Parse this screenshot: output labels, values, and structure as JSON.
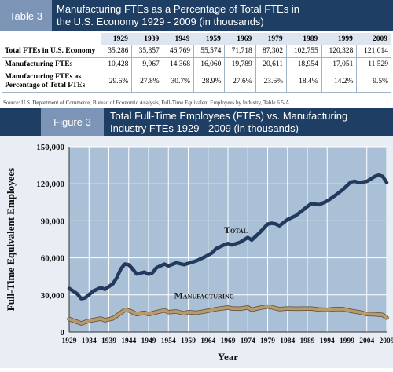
{
  "table": {
    "tag": "Table 3",
    "title_line1": "Manufacturing FTEs as a Percentage of Total FTEs in",
    "title_line2": "the U.S. Economy 1929 - 2009 (in thousands)",
    "years": [
      "1929",
      "1939",
      "1949",
      "1959",
      "1969",
      "1979",
      "1989",
      "1999",
      "2009"
    ],
    "rows": [
      {
        "label": "Total FTEs in U.S. Economy",
        "values": [
          "35,286",
          "35,857",
          "46,769",
          "55,574",
          "71,718",
          "87,302",
          "102,755",
          "120,328",
          "121,014"
        ]
      },
      {
        "label": "Manufacturing FTEs",
        "values": [
          "10,428",
          "9,967",
          "14,368",
          "16,060",
          "19,789",
          "20,611",
          "18,954",
          "17,051",
          "11,529"
        ]
      },
      {
        "label_line1": "Manufacturing FTEs as",
        "label_line2": "Percentage of Total FTEs",
        "values": [
          "29.6%",
          "27.8%",
          "30.7%",
          "28.9%",
          "27.6%",
          "23.6%",
          "18.4%",
          "14.2%",
          "9.5%"
        ]
      }
    ],
    "source": "Source: U.S. Department of Commerce, Bureau of Economic Analysis, Full-Time Equivalent Employees by Industry, Table 6.5-A"
  },
  "figure": {
    "tag": "Figure 3",
    "title_line1": "Total Full-Time Employees (FTEs) vs. Manufacturing",
    "title_line2": "Industry FTEs 1929 - 2009 (in thousands)"
  },
  "colors": {
    "header_bg": "#1f3e63",
    "tag_bg": "#7c95b6",
    "plot_bg": "#a9c0d6",
    "total_line": "#233a5e",
    "manufacturing_line": "#b89a6c"
  },
  "chart_data": {
    "type": "line",
    "xlabel": "Year",
    "ylabel": "Full-Time Equivalent Employees",
    "xlim": [
      1929,
      2009
    ],
    "ylim": [
      0,
      150000
    ],
    "yticks": [
      0,
      30000,
      60000,
      90000,
      120000,
      150000
    ],
    "ytick_labels": [
      "0",
      "30,000",
      "60,000",
      "90,000",
      "120,000",
      "150,000"
    ],
    "xticks": [
      1929,
      1934,
      1939,
      1944,
      1949,
      1954,
      1959,
      1964,
      1969,
      1974,
      1979,
      1984,
      1989,
      1994,
      1999,
      2004,
      2009
    ],
    "grid": true,
    "series": [
      {
        "name": "Total",
        "x": [
          1929,
          1931,
          1932,
          1933,
          1935,
          1937,
          1938,
          1940,
          1941,
          1942,
          1943,
          1944,
          1945,
          1946,
          1948,
          1949,
          1950,
          1951,
          1953,
          1954,
          1956,
          1958,
          1959,
          1961,
          1963,
          1965,
          1966,
          1968,
          1969,
          1970,
          1972,
          1974,
          1975,
          1977,
          1979,
          1980,
          1981,
          1982,
          1984,
          1986,
          1988,
          1990,
          1991,
          1992,
          1994,
          1996,
          1998,
          2000,
          2001,
          2002,
          2004,
          2006,
          2007,
          2008,
          2009
        ],
        "values": [
          35286,
          31000,
          27000,
          27500,
          33000,
          36000,
          34500,
          39000,
          44000,
          51000,
          55000,
          54500,
          51000,
          47000,
          48500,
          46769,
          48000,
          52000,
          55000,
          53500,
          56000,
          54500,
          55574,
          57500,
          60500,
          64000,
          67500,
          70500,
          71718,
          70500,
          72500,
          76500,
          74500,
          80500,
          87302,
          88000,
          87500,
          86000,
          91000,
          94000,
          99000,
          104000,
          103500,
          103000,
          106000,
          110500,
          115500,
          121500,
          122000,
          121000,
          122000,
          126000,
          127000,
          126000,
          121014
        ]
      },
      {
        "name": "Manufacturing",
        "x": [
          1929,
          1932,
          1934,
          1937,
          1938,
          1940,
          1942,
          1943,
          1944,
          1946,
          1948,
          1949,
          1951,
          1953,
          1954,
          1956,
          1958,
          1959,
          1961,
          1963,
          1966,
          1969,
          1970,
          1972,
          1974,
          1975,
          1977,
          1979,
          1980,
          1982,
          1984,
          1986,
          1988,
          1990,
          1992,
          1994,
          1996,
          1998,
          2000,
          2002,
          2004,
          2006,
          2008,
          2009
        ],
        "values": [
          10428,
          7000,
          9000,
          10800,
          9500,
          11000,
          15500,
          17800,
          17500,
          14500,
          15500,
          14368,
          16000,
          17500,
          16000,
          16500,
          15000,
          16060,
          15500,
          16500,
          18500,
          19789,
          19000,
          18800,
          19800,
          18000,
          19500,
          20611,
          20000,
          18500,
          19000,
          18800,
          18900,
          18954,
          18200,
          18000,
          18500,
          18500,
          17051,
          16000,
          14500,
          14300,
          13700,
          11529
        ]
      }
    ],
    "annotations": [
      {
        "text": "Total",
        "x": 1971,
        "y": 80000
      },
      {
        "text": "Manufacturing",
        "x": 1963,
        "y": 27000
      }
    ]
  }
}
